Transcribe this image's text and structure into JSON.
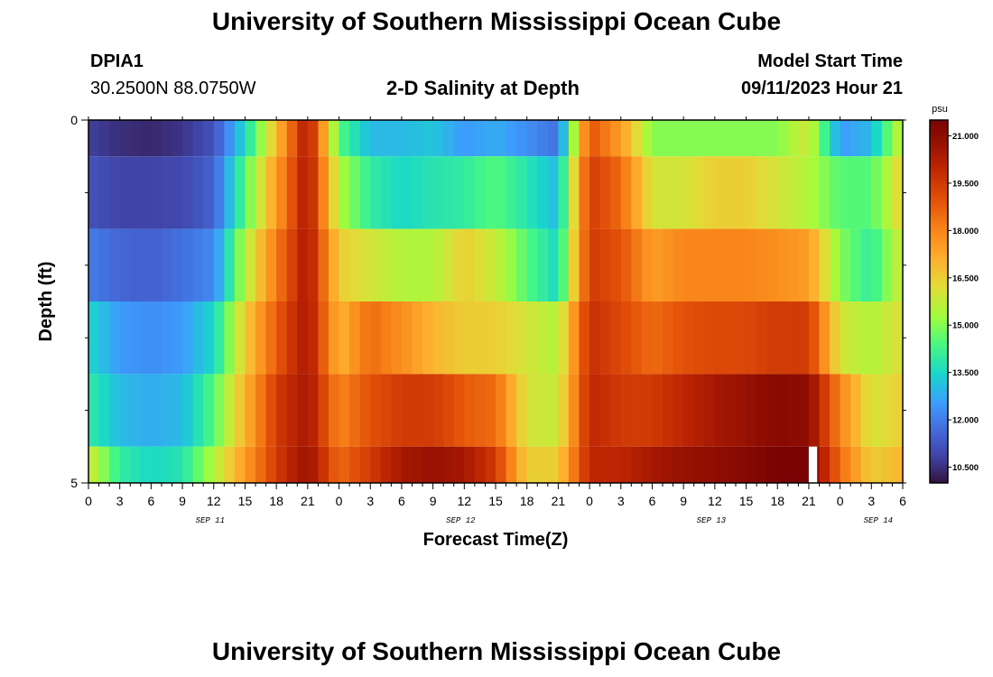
{
  "header": {
    "title_top": "University of Southern Mississippi Ocean Cube",
    "title_bottom": "University of Southern Mississippi Ocean Cube",
    "station_id": "DPIA1",
    "coordinates": "30.2500N  88.0750W",
    "model_start_label": "Model Start Time",
    "model_start_value": "09/11/2023 Hour 21"
  },
  "chart_data": {
    "type": "heatmap",
    "title": "2-D Salinity at Depth",
    "xlabel": "Forecast Time(Z)",
    "ylabel": "Depth (ft)",
    "x_tick_labels": [
      "0",
      "3",
      "6",
      "9",
      "12",
      "15",
      "18",
      "21",
      "0",
      "3",
      "6",
      "9",
      "12",
      "15",
      "18",
      "21",
      "0",
      "3",
      "6",
      "9",
      "12",
      "15",
      "18",
      "21",
      "0",
      "3",
      "6"
    ],
    "date_labels": [
      "SEP 11",
      "SEP 12",
      "SEP 13",
      "SEP 14"
    ],
    "y_tick_labels": [
      "0",
      "5"
    ],
    "ylim": [
      0,
      5
    ],
    "x_range_hours": [
      0,
      78
    ],
    "colorbar": {
      "unit": "psu",
      "range": [
        10.0,
        21.5
      ],
      "tick_labels": [
        "21.000",
        "19.500",
        "18.000",
        "16.500",
        "15.000",
        "13.500",
        "12.000",
        "10.500"
      ],
      "tick_values": [
        21.0,
        19.5,
        18.0,
        16.5,
        15.0,
        13.5,
        12.0,
        10.5
      ]
    },
    "depth_layers": [
      "0.0-0.5",
      "0.5-1.5",
      "1.5-2.5",
      "2.5-3.5",
      "3.5-4.5",
      "4.5-5.0"
    ],
    "time_hours_profile": [
      0,
      3,
      6,
      9,
      12,
      15,
      18,
      21,
      24,
      27,
      30,
      33,
      36,
      39,
      42,
      45,
      48,
      51,
      54,
      57,
      60,
      63,
      66,
      69,
      72,
      75,
      78
    ],
    "salinity_psu": [
      [
        10.8,
        10.5,
        10.4,
        10.6,
        11.2,
        13.5,
        16.8,
        20.5,
        14.5,
        13.0,
        13.0,
        13.2,
        12.5,
        12.8,
        12.3,
        11.8,
        19.0,
        17.5,
        15.0,
        15.0,
        15.0,
        15.0,
        15.0,
        16.0,
        12.5,
        13.0,
        16.0
      ],
      [
        11.2,
        10.9,
        10.9,
        11.0,
        11.5,
        14.5,
        17.5,
        20.5,
        15.5,
        14.0,
        13.5,
        13.8,
        14.0,
        14.5,
        13.8,
        13.0,
        19.5,
        18.5,
        16.0,
        16.0,
        16.5,
        16.5,
        16.0,
        15.5,
        14.5,
        14.5,
        16.5
      ],
      [
        12.0,
        11.6,
        11.5,
        11.8,
        12.2,
        15.5,
        18.2,
        20.5,
        16.5,
        16.0,
        15.5,
        15.5,
        16.5,
        15.8,
        14.5,
        13.5,
        19.5,
        19.0,
        17.5,
        18.0,
        18.0,
        18.0,
        17.8,
        17.5,
        15.0,
        14.0,
        16.0
      ],
      [
        13.5,
        12.5,
        12.3,
        12.5,
        13.5,
        16.5,
        18.8,
        20.5,
        17.0,
        18.5,
        17.8,
        17.0,
        16.5,
        16.5,
        16.0,
        15.5,
        19.8,
        19.2,
        18.5,
        19.0,
        19.2,
        19.2,
        19.5,
        19.5,
        16.0,
        15.5,
        16.2
      ],
      [
        14.0,
        13.0,
        12.8,
        13.0,
        14.5,
        17.0,
        19.5,
        20.5,
        18.0,
        19.0,
        19.5,
        19.5,
        18.8,
        18.5,
        16.0,
        15.8,
        20.0,
        19.5,
        19.5,
        20.0,
        20.5,
        20.8,
        21.2,
        21.0,
        18.0,
        16.0,
        16.5
      ],
      [
        16.0,
        14.0,
        13.5,
        13.8,
        15.5,
        17.5,
        19.5,
        20.8,
        18.5,
        19.5,
        20.5,
        20.8,
        20.5,
        19.5,
        16.5,
        16.5,
        20.0,
        20.0,
        20.5,
        20.8,
        21.0,
        21.2,
        21.5,
        21.5,
        18.5,
        16.5,
        17.0
      ]
    ],
    "missing_segment": {
      "layer": "4.5-5.0",
      "hour_start": 69.0,
      "hour_end": 69.8
    }
  }
}
